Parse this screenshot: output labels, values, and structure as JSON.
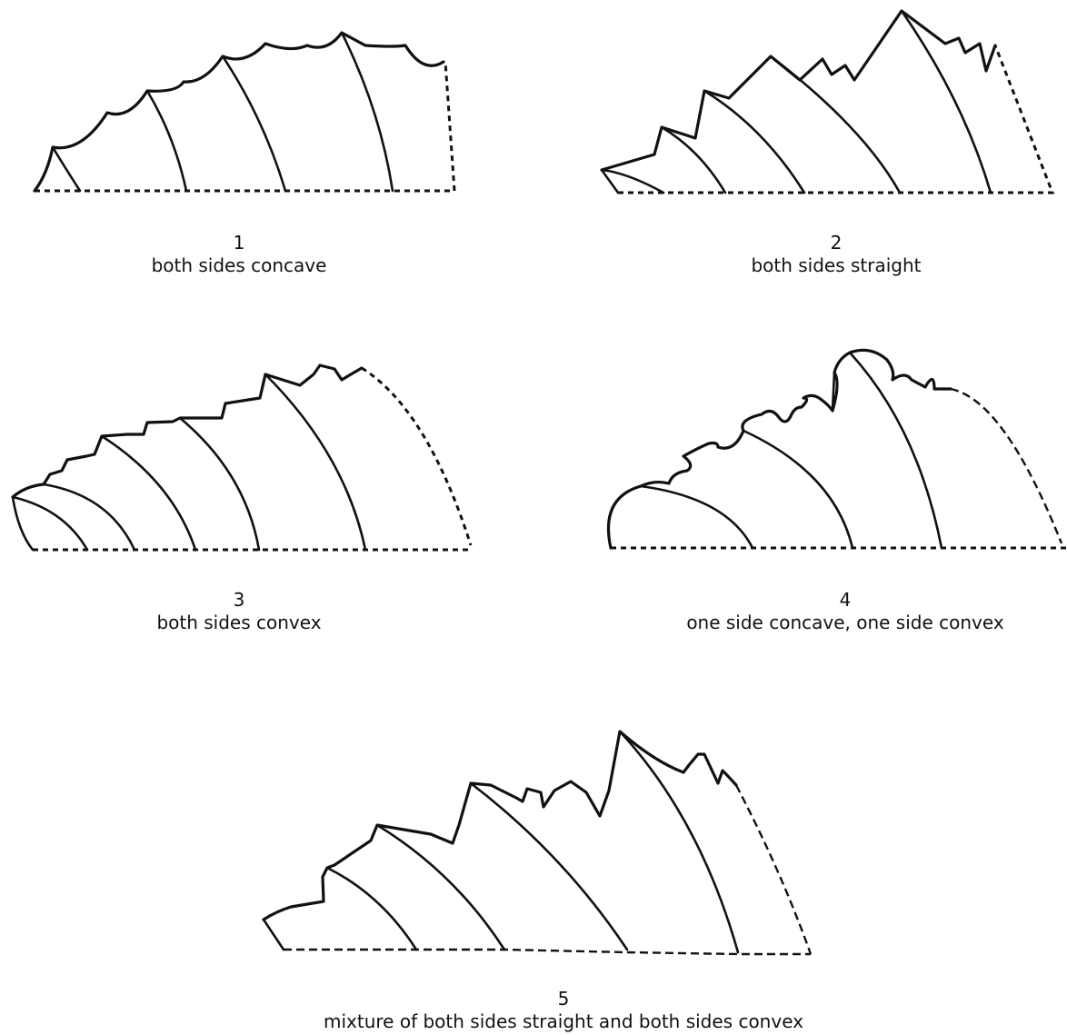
{
  "figures": [
    {
      "number": "1",
      "label": "both sides concave"
    },
    {
      "number": "2",
      "label": "both sides straight"
    },
    {
      "number": "3",
      "label": "both sides convex"
    },
    {
      "number": "4",
      "label": "one side concave, one side convex"
    },
    {
      "number": "5",
      "label": "mixture of both sides straight and both sides convex"
    }
  ]
}
